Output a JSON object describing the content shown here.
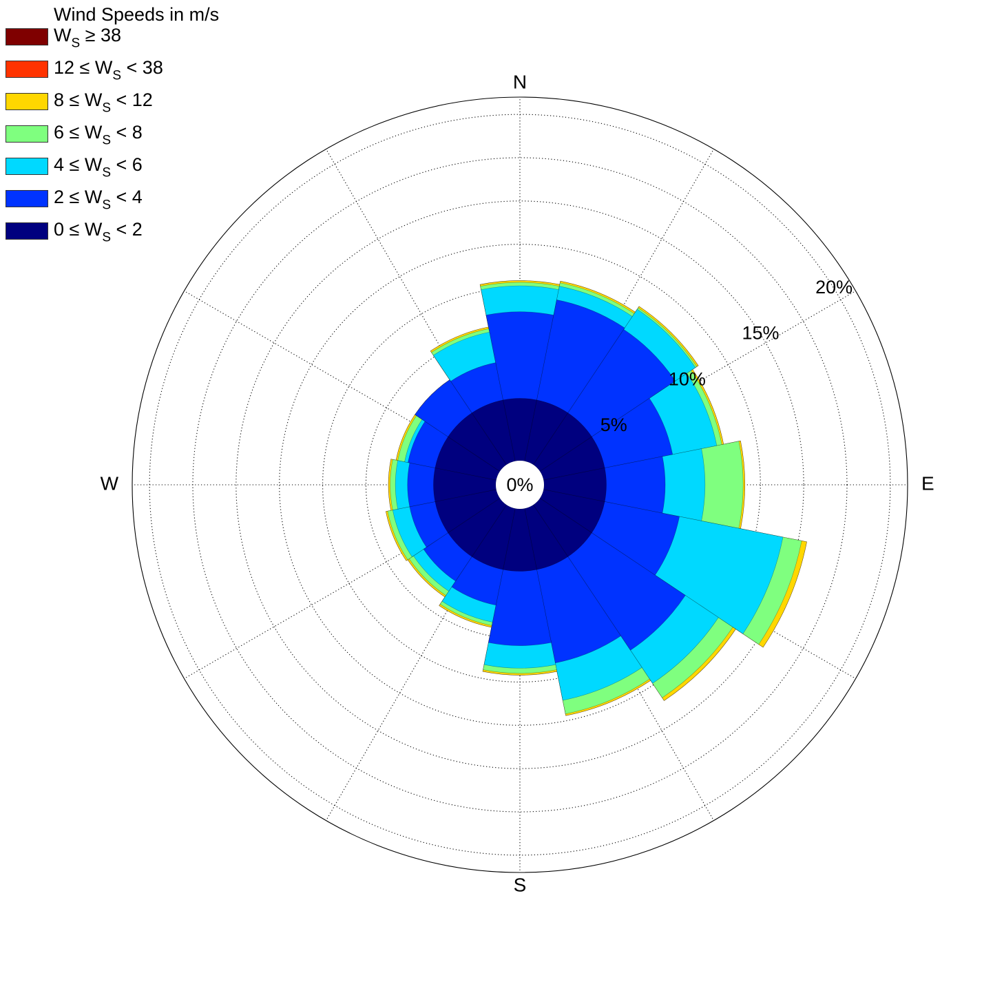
{
  "chart_data": {
    "type": "windrose",
    "legend_title": "Wind Speeds in m/s",
    "legend_position": "top-left",
    "directions": [
      "N",
      "NNE",
      "NE",
      "ENE",
      "E",
      "ESE",
      "SE",
      "SSE",
      "S",
      "SSW",
      "SW",
      "WSW",
      "W",
      "WNW",
      "NW",
      "NNW"
    ],
    "compass_labels": [
      "N",
      "E",
      "S",
      "W"
    ],
    "radial_ticks": [
      0,
      5,
      10,
      15,
      20
    ],
    "radial_tick_labels": [
      "0%",
      "5%",
      "10%",
      "15%",
      "20%"
    ],
    "rmax": 21,
    "grid": true,
    "bins": [
      {
        "label_html": "0 &le; W<sub>S</sub> &lt; 2",
        "color": "#00007f",
        "values": [
          3.6,
          3.6,
          3.6,
          3.6,
          3.6,
          3.6,
          3.6,
          3.6,
          3.6,
          3.6,
          3.6,
          3.6,
          3.6,
          3.6,
          3.6,
          3.6
        ]
      },
      {
        "label_html": "2 &le; W<sub>S</sub> &lt; 4",
        "color": "#0033ff",
        "values": [
          8.6,
          9.5,
          9.4,
          7.6,
          7.0,
          8.0,
          10.1,
          9.1,
          7.9,
          5.7,
          5.3,
          5.1,
          5.1,
          5.2,
          5.9,
          5.8
        ]
      },
      {
        "label_html": "4 &le; W<sub>S</sub> &lt; 6",
        "color": "#00d9ff",
        "values": [
          10.1,
          10.3,
          10.8,
          10.2,
          9.3,
          14.1,
          12.4,
          11.3,
          9.2,
          6.7,
          6.0,
          6.1,
          5.8,
          5.4,
          5.6,
          7.6
        ]
      },
      {
        "label_html": "6 &le; W<sub>S</sub> &lt; 8",
        "color": "#7fff7f",
        "values": [
          10.3,
          10.5,
          10.9,
          10.5,
          11.5,
          15.2,
          13.4,
          12.1,
          9.5,
          6.9,
          6.3,
          6.4,
          6.1,
          5.8,
          5.8,
          7.8
        ]
      },
      {
        "label_html": "8 &le; W<sub>S</sub> &lt; 12",
        "color": "#ffd700",
        "values": [
          10.4,
          10.6,
          11.0,
          10.6,
          11.6,
          15.5,
          13.6,
          12.2,
          9.6,
          7.0,
          6.4,
          6.5,
          6.2,
          5.9,
          5.9,
          7.9
        ]
      },
      {
        "label_html": "12 &le; W<sub>S</sub> &lt; 38",
        "color": "#ff3300",
        "values": [
          10.4,
          10.6,
          11.0,
          10.6,
          11.6,
          15.5,
          13.6,
          12.2,
          9.6,
          7.0,
          6.4,
          6.5,
          6.2,
          5.9,
          5.9,
          7.9
        ]
      },
      {
        "label_html": "W<sub>S</sub> &ge; 38",
        "color": "#7f0000",
        "values": [
          10.4,
          10.6,
          11.0,
          10.6,
          11.6,
          15.5,
          13.6,
          12.2,
          9.6,
          7.0,
          6.4,
          6.5,
          6.2,
          5.9,
          5.9,
          7.9
        ]
      }
    ]
  }
}
